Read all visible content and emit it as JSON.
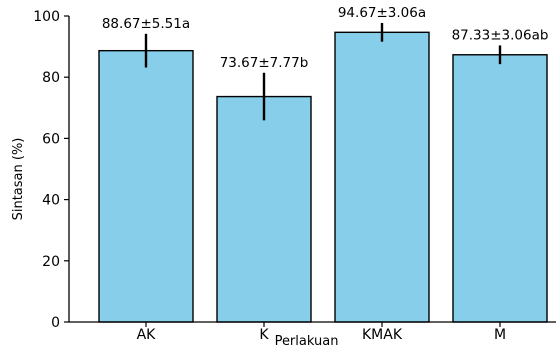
{
  "chart_data": {
    "type": "bar",
    "categories": [
      "AK",
      "K",
      "KMAK",
      "M"
    ],
    "values": [
      88.67,
      73.67,
      94.67,
      87.33
    ],
    "errors": [
      5.51,
      7.77,
      3.06,
      3.06
    ],
    "data_labels": [
      "88.67±5.51a",
      "73.67±7.77b",
      "94.67±3.06a",
      "87.33±3.06ab"
    ],
    "xlabel": "Perlakuan",
    "ylabel": "Sintasan (%)",
    "ylim": [
      0,
      100
    ],
    "yticks": [
      0,
      20,
      40,
      60,
      80,
      100
    ],
    "grid": false,
    "colors": {
      "bar_fill": "#87ceeb",
      "bar_edge": "#000000",
      "error_bar": "#000000",
      "axis": "#000000"
    }
  }
}
